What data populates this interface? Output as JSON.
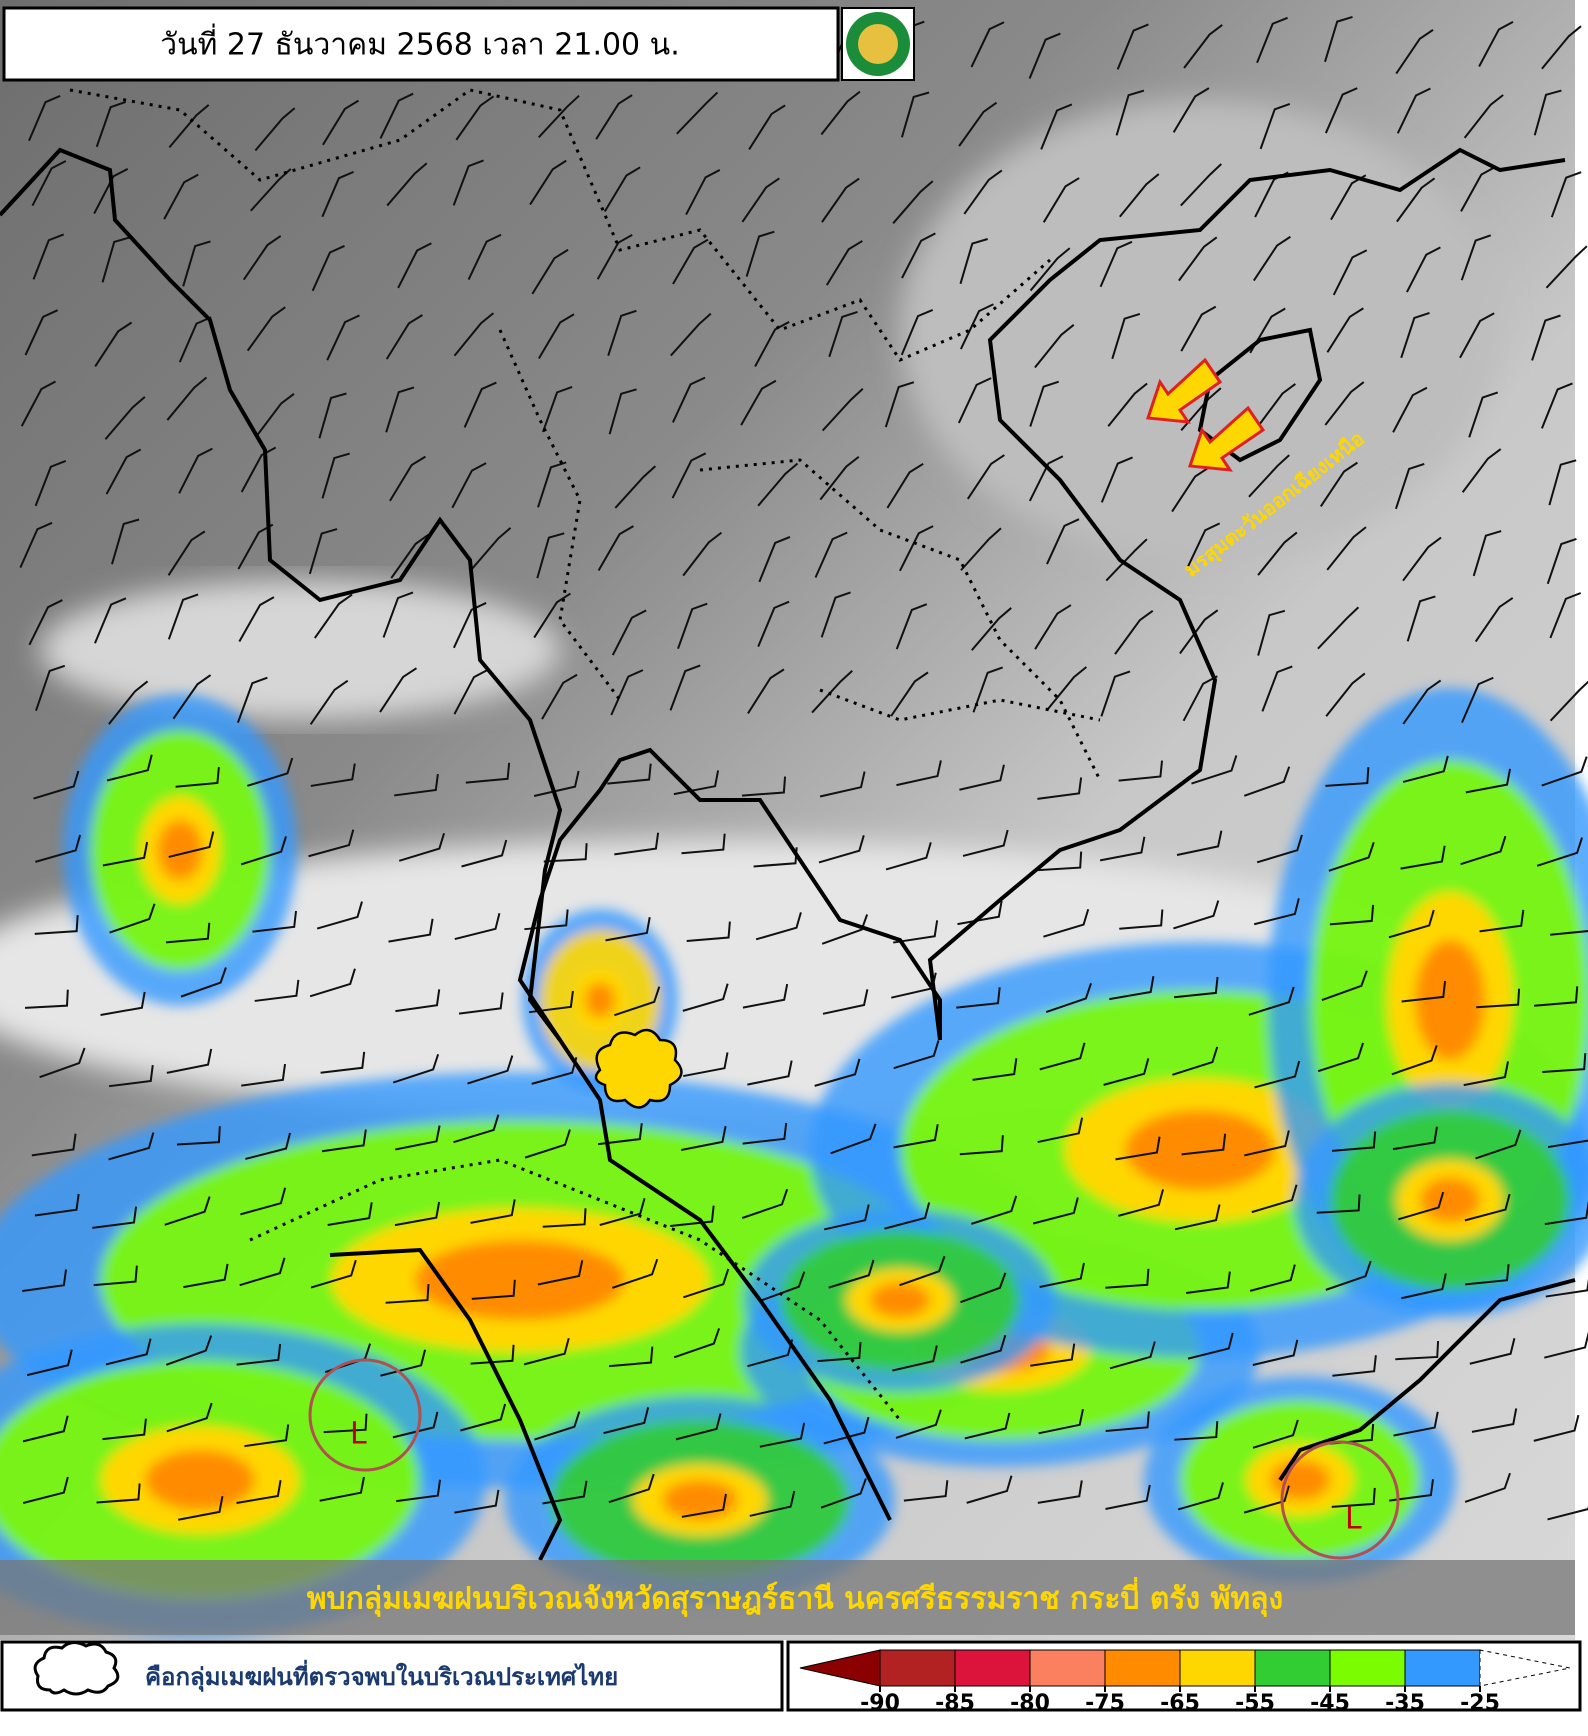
{
  "header": {
    "title": "วันที่ 27 ธันวาคม 2568 เวลา 21.00 น."
  },
  "map": {
    "monsoon_label": "มรสุมตะวันออกเฉียงเหนือ",
    "lows": [
      "L",
      "L"
    ],
    "caption": "พบกลุ่มเมฆฝนบริเวณจังหวัดสุราษฎร์ธานี นครศรีธรรมราช กระบี่ ตรัง พัทลุง"
  },
  "legend": {
    "cloud_text": "คือกลุ่มเมฆฝนที่ตรวจพบในบริเวณประเทศไทย"
  },
  "colorbar": {
    "ticks": [
      -90,
      -85,
      -80,
      -75,
      -65,
      -55,
      -45,
      -35,
      -25
    ],
    "low_color": "#8b0000",
    "segment_colors": [
      "#b22222",
      "#dc143c",
      "#fa8060",
      "#ff8c00",
      "#ffd700",
      "#32cd32",
      "#7cfc00",
      "#3399ff"
    ],
    "high_color": "#ffffff"
  }
}
